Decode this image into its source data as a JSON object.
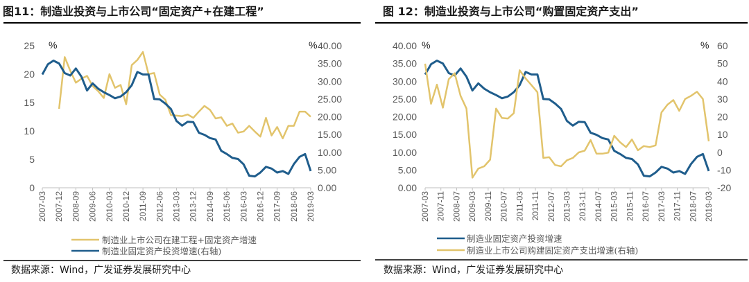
{
  "colors": {
    "gold": "#E2C46C",
    "blue": "#1F5D8C",
    "axis": "#BFBFBF"
  },
  "chart_data": [
    {
      "type": "line",
      "title": "图11：制造业投资与上市公司“固定资产+在建工程”",
      "source": "数据来源：Wind，广发证券发展研究中心",
      "left_axis": {
        "unit": "%",
        "ylim": [
          0,
          25
        ],
        "ticks": [
          "0",
          "5",
          "10",
          "15",
          "20",
          "25"
        ]
      },
      "right_axis": {
        "unit": "%",
        "ylim": [
          0,
          40
        ],
        "ticks": [
          "0.00",
          "5.00",
          "10.00",
          "15.00",
          "20.00",
          "25.00",
          "30.00",
          "35.00",
          "40.00"
        ]
      },
      "x_ticks": [
        "2007-03",
        "2007-12",
        "2008-09",
        "2009-06",
        "2010-03",
        "2010-12",
        "2011-09",
        "2012-06",
        "2013-03",
        "2013-12",
        "2014-09",
        "2015-06",
        "2016-03",
        "2016-12",
        "2017-09",
        "2018-06",
        "2019-03"
      ],
      "legend_placement": "bottom",
      "series": [
        {
          "name": "制造业上市公司在建工程+固定资产增速",
          "axis": "left",
          "color": "gold",
          "start": "2007-12",
          "values": [
            13.9,
            23.0,
            20.6,
            18.5,
            19.2,
            19.7,
            17.9,
            17.0,
            15.8,
            20.0,
            17.6,
            18.1,
            14.7,
            21.6,
            22.5,
            23.9,
            20.0,
            20.2,
            16.4,
            15.5,
            12.8,
            12.7,
            12.6,
            12.9,
            12.3,
            13.4,
            14.4,
            13.7,
            12.2,
            12.4,
            10.9,
            11.3,
            9.7,
            9.9,
            10.9,
            9.9,
            9.0,
            12.3,
            9.2,
            10.7,
            8.7,
            10.9,
            10.9,
            13.4,
            13.4,
            12.5
          ]
        },
        {
          "name": "制造业固定资产投资增速(右轴)",
          "axis": "right",
          "color": "blue",
          "start": "2007-03",
          "values": [
            31.9,
            34.8,
            35.8,
            35.0,
            32.3,
            31.6,
            33.6,
            31.3,
            27.4,
            29.4,
            27.9,
            26.9,
            26.1,
            25.2,
            25.7,
            26.9,
            28.9,
            32.6,
            31.9,
            31.9,
            25.0,
            24.9,
            23.7,
            22.2,
            18.8,
            17.5,
            18.6,
            18.5,
            15.5,
            14.9,
            14.0,
            13.6,
            10.4,
            9.5,
            8.4,
            8.1,
            6.6,
            3.4,
            3.2,
            4.3,
            5.9,
            5.4,
            4.3,
            4.7,
            3.9,
            6.7,
            8.7,
            9.5,
            4.7
          ]
        }
      ]
    },
    {
      "type": "line",
      "title": "图 12：制造业投资与上市公司“购置固定资产支出”",
      "source": "数据来源：Wind，广发证券发展研究中心",
      "left_axis": {
        "unit": "%",
        "ylim": [
          0,
          40
        ],
        "ticks": [
          "0.00",
          "5.00",
          "10.00",
          "15.00",
          "20.00",
          "25.00",
          "30.00",
          "35.00",
          "40.00"
        ]
      },
      "right_axis": {
        "unit": "%",
        "ylim": [
          -20,
          60
        ],
        "ticks": [
          "-20",
          "-10",
          "0",
          "10",
          "20",
          "30",
          "40",
          "50",
          "60"
        ]
      },
      "x_ticks": [
        "2007-03",
        "2007-11",
        "2008-07",
        "2009-03",
        "2009-11",
        "2010-07",
        "2011-03",
        "2011-11",
        "2012-07",
        "2013-03",
        "2013-11",
        "2014-07",
        "2015-03",
        "2015-11",
        "2016-07",
        "2017-03",
        "2017-11",
        "2018-07",
        "2019-03"
      ],
      "legend_placement": "bottom",
      "series": [
        {
          "name": "制造业固定资产投资增速",
          "axis": "left",
          "color": "blue",
          "start": "2007-03",
          "values": [
            31.9,
            34.8,
            35.8,
            35.0,
            32.3,
            31.6,
            33.6,
            31.3,
            27.4,
            29.4,
            27.9,
            26.9,
            26.1,
            25.2,
            25.7,
            26.9,
            28.9,
            32.6,
            31.9,
            31.9,
            25.0,
            24.9,
            23.7,
            22.2,
            18.8,
            17.5,
            18.6,
            18.5,
            15.5,
            14.9,
            14.0,
            13.6,
            10.4,
            9.5,
            8.4,
            8.1,
            6.6,
            3.4,
            3.2,
            4.3,
            5.9,
            5.4,
            4.3,
            4.7,
            3.9,
            6.7,
            8.7,
            9.5,
            4.7
          ]
        },
        {
          "name": "制造业上市公司购建固定资产支出增速(右轴)",
          "axis": "right",
          "color": "gold",
          "start": "2007-03",
          "values": [
            49.9,
            27.3,
            38.1,
            25.1,
            41.2,
            44.5,
            31.8,
            24.6,
            -14.3,
            -9.2,
            -7.9,
            -4.2,
            24.6,
            19.3,
            19.0,
            22.0,
            46.2,
            41.6,
            37.8,
            33.8,
            -3.2,
            -2.8,
            -7.2,
            -7.9,
            -4.5,
            -3.2,
            -0.1,
            0.9,
            6.9,
            -0.8,
            -0.8,
            -0.2,
            9.3,
            5.6,
            2.9,
            7.2,
            1.1,
            3.5,
            2.9,
            3.9,
            22.4,
            26.8,
            29.4,
            23.3,
            30.0,
            31.8,
            34.1,
            30.0,
            6.2
          ]
        }
      ]
    }
  ]
}
